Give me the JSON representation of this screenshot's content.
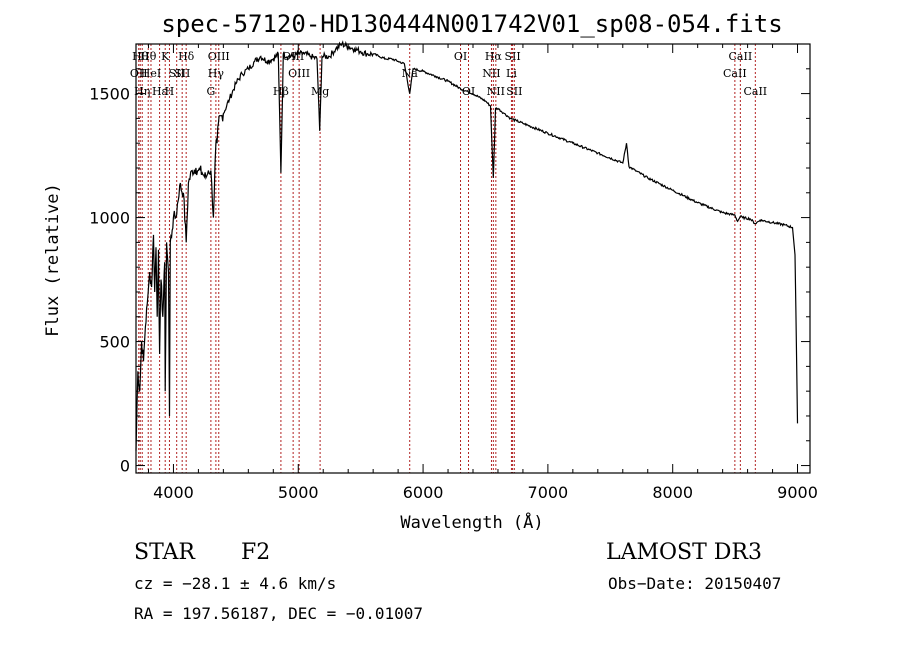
{
  "chart_data": {
    "type": "line",
    "title": "spec-57120-HD130444N001742V01_sp08-054.fits",
    "xlabel": "Wavelength (Å)",
    "ylabel": "Flux (relative)",
    "xlim": [
      3700,
      9100
    ],
    "ylim": [
      -30,
      1700
    ],
    "x_ticks": [
      4000,
      5000,
      6000,
      7000,
      8000,
      9000
    ],
    "y_ticks": [
      0,
      500,
      1000,
      1500
    ],
    "line_color": "#000000",
    "marker_color": "#b22222",
    "series": [
      {
        "name": "spectrum",
        "x": [
          3700,
          3715,
          3730,
          3745,
          3760,
          3775,
          3790,
          3798,
          3810,
          3825,
          3840,
          3850,
          3860,
          3870,
          3880,
          3889,
          3900,
          3915,
          3930,
          3934,
          3945,
          3960,
          3968,
          3975,
          3990,
          4000,
          4020,
          4050,
          4080,
          4102,
          4120,
          4150,
          4180,
          4200,
          4230,
          4260,
          4280,
          4300,
          4320,
          4340,
          4350,
          4360,
          4400,
          4450,
          4500,
          4550,
          4600,
          4650,
          4700,
          4750,
          4800,
          4840,
          4861,
          4880,
          4920,
          4960,
          5000,
          5050,
          5100,
          5150,
          5172,
          5190,
          5250,
          5300,
          5350,
          5400,
          5450,
          5500,
          5550,
          5600,
          5650,
          5700,
          5750,
          5800,
          5850,
          5893,
          5920,
          6000,
          6100,
          6200,
          6300,
          6400,
          6500,
          6540,
          6563,
          6580,
          6600,
          6650,
          6700,
          6750,
          6800,
          7000,
          7200,
          7400,
          7600,
          7630,
          7650,
          7700,
          7800,
          8000,
          8200,
          8400,
          8498,
          8520,
          8542,
          8560,
          8620,
          8662,
          8700,
          8800,
          8900,
          8960,
          8980,
          9000
        ],
        "y": [
          60,
          380,
          300,
          500,
          420,
          560,
          650,
          700,
          780,
          720,
          930,
          700,
          880,
          600,
          870,
          450,
          750,
          600,
          820,
          300,
          900,
          780,
          200,
          900,
          950,
          1000,
          1000,
          1130,
          1100,
          900,
          1140,
          1190,
          1200,
          1190,
          1180,
          1160,
          1190,
          1190,
          1000,
          1300,
          1300,
          1380,
          1420,
          1480,
          1540,
          1580,
          1600,
          1630,
          1650,
          1630,
          1640,
          1660,
          1180,
          1660,
          1650,
          1650,
          1660,
          1660,
          1650,
          1640,
          1350,
          1650,
          1650,
          1680,
          1700,
          1690,
          1680,
          1670,
          1660,
          1660,
          1650,
          1640,
          1640,
          1630,
          1620,
          1500,
          1600,
          1590,
          1570,
          1550,
          1520,
          1500,
          1470,
          1450,
          1160,
          1440,
          1440,
          1420,
          1400,
          1390,
          1380,
          1340,
          1300,
          1260,
          1220,
          1300,
          1205,
          1190,
          1160,
          1110,
          1060,
          1020,
          1010,
          985,
          1005,
          1000,
          995,
          975,
          990,
          980,
          970,
          960,
          850,
          170
        ]
      }
    ],
    "line_markers": [
      {
        "w": 3722,
        "label": "OII",
        "row": 2
      },
      {
        "w": 3734,
        "label": "Hθ",
        "row": 1
      },
      {
        "w": 3750,
        "label": "Hη",
        "row": 3
      },
      {
        "w": 3798,
        "label": "Hθ",
        "row": 1
      },
      {
        "w": 3820,
        "label": "HeI",
        "row": 2
      },
      {
        "w": 3889,
        "label": "Hε",
        "row": 3
      },
      {
        "w": 3934,
        "label": "K",
        "row": 1
      },
      {
        "w": 3968,
        "label": "H",
        "row": 3
      },
      {
        "w": 4026,
        "label": "SII",
        "row": 2
      },
      {
        "w": 4070,
        "label": "SII",
        "row": 2
      },
      {
        "w": 4102,
        "label": "Hδ",
        "row": 1
      },
      {
        "w": 4300,
        "label": "G",
        "row": 3
      },
      {
        "w": 4340,
        "label": "Hγ",
        "row": 2
      },
      {
        "w": 4363,
        "label": "OIII",
        "row": 1
      },
      {
        "w": 4861,
        "label": "Hβ",
        "row": 3
      },
      {
        "w": 4959,
        "label": "OIII",
        "row": 1
      },
      {
        "w": 5007,
        "label": "OIII",
        "row": 2
      },
      {
        "w": 5175,
        "label": "Mg",
        "row": 3
      },
      {
        "w": 5893,
        "label": "Na",
        "row": 2
      },
      {
        "w": 6300,
        "label": "OI",
        "row": 1
      },
      {
        "w": 6364,
        "label": "OI",
        "row": 3
      },
      {
        "w": 6548,
        "label": "NII",
        "row": 2
      },
      {
        "w": 6563,
        "label": "Hα",
        "row": 1
      },
      {
        "w": 6583,
        "label": "NII",
        "row": 3
      },
      {
        "w": 6708,
        "label": "Li",
        "row": 2
      },
      {
        "w": 6717,
        "label": "SII",
        "row": 1
      },
      {
        "w": 6731,
        "label": "SII",
        "row": 3
      },
      {
        "w": 8498,
        "label": "CaII",
        "row": 2
      },
      {
        "w": 8542,
        "label": "CaII",
        "row": 1
      },
      {
        "w": 8662,
        "label": "CaII",
        "row": 3
      }
    ]
  },
  "info": {
    "class": "STAR",
    "subclass": "F2",
    "survey": "LAMOST DR3",
    "cz": "cz = −28.1 ± 4.6 km/s",
    "obs_date": "Obs−Date: 20150407",
    "radec": "RA = 197.56187, DEC =  −0.01007"
  }
}
